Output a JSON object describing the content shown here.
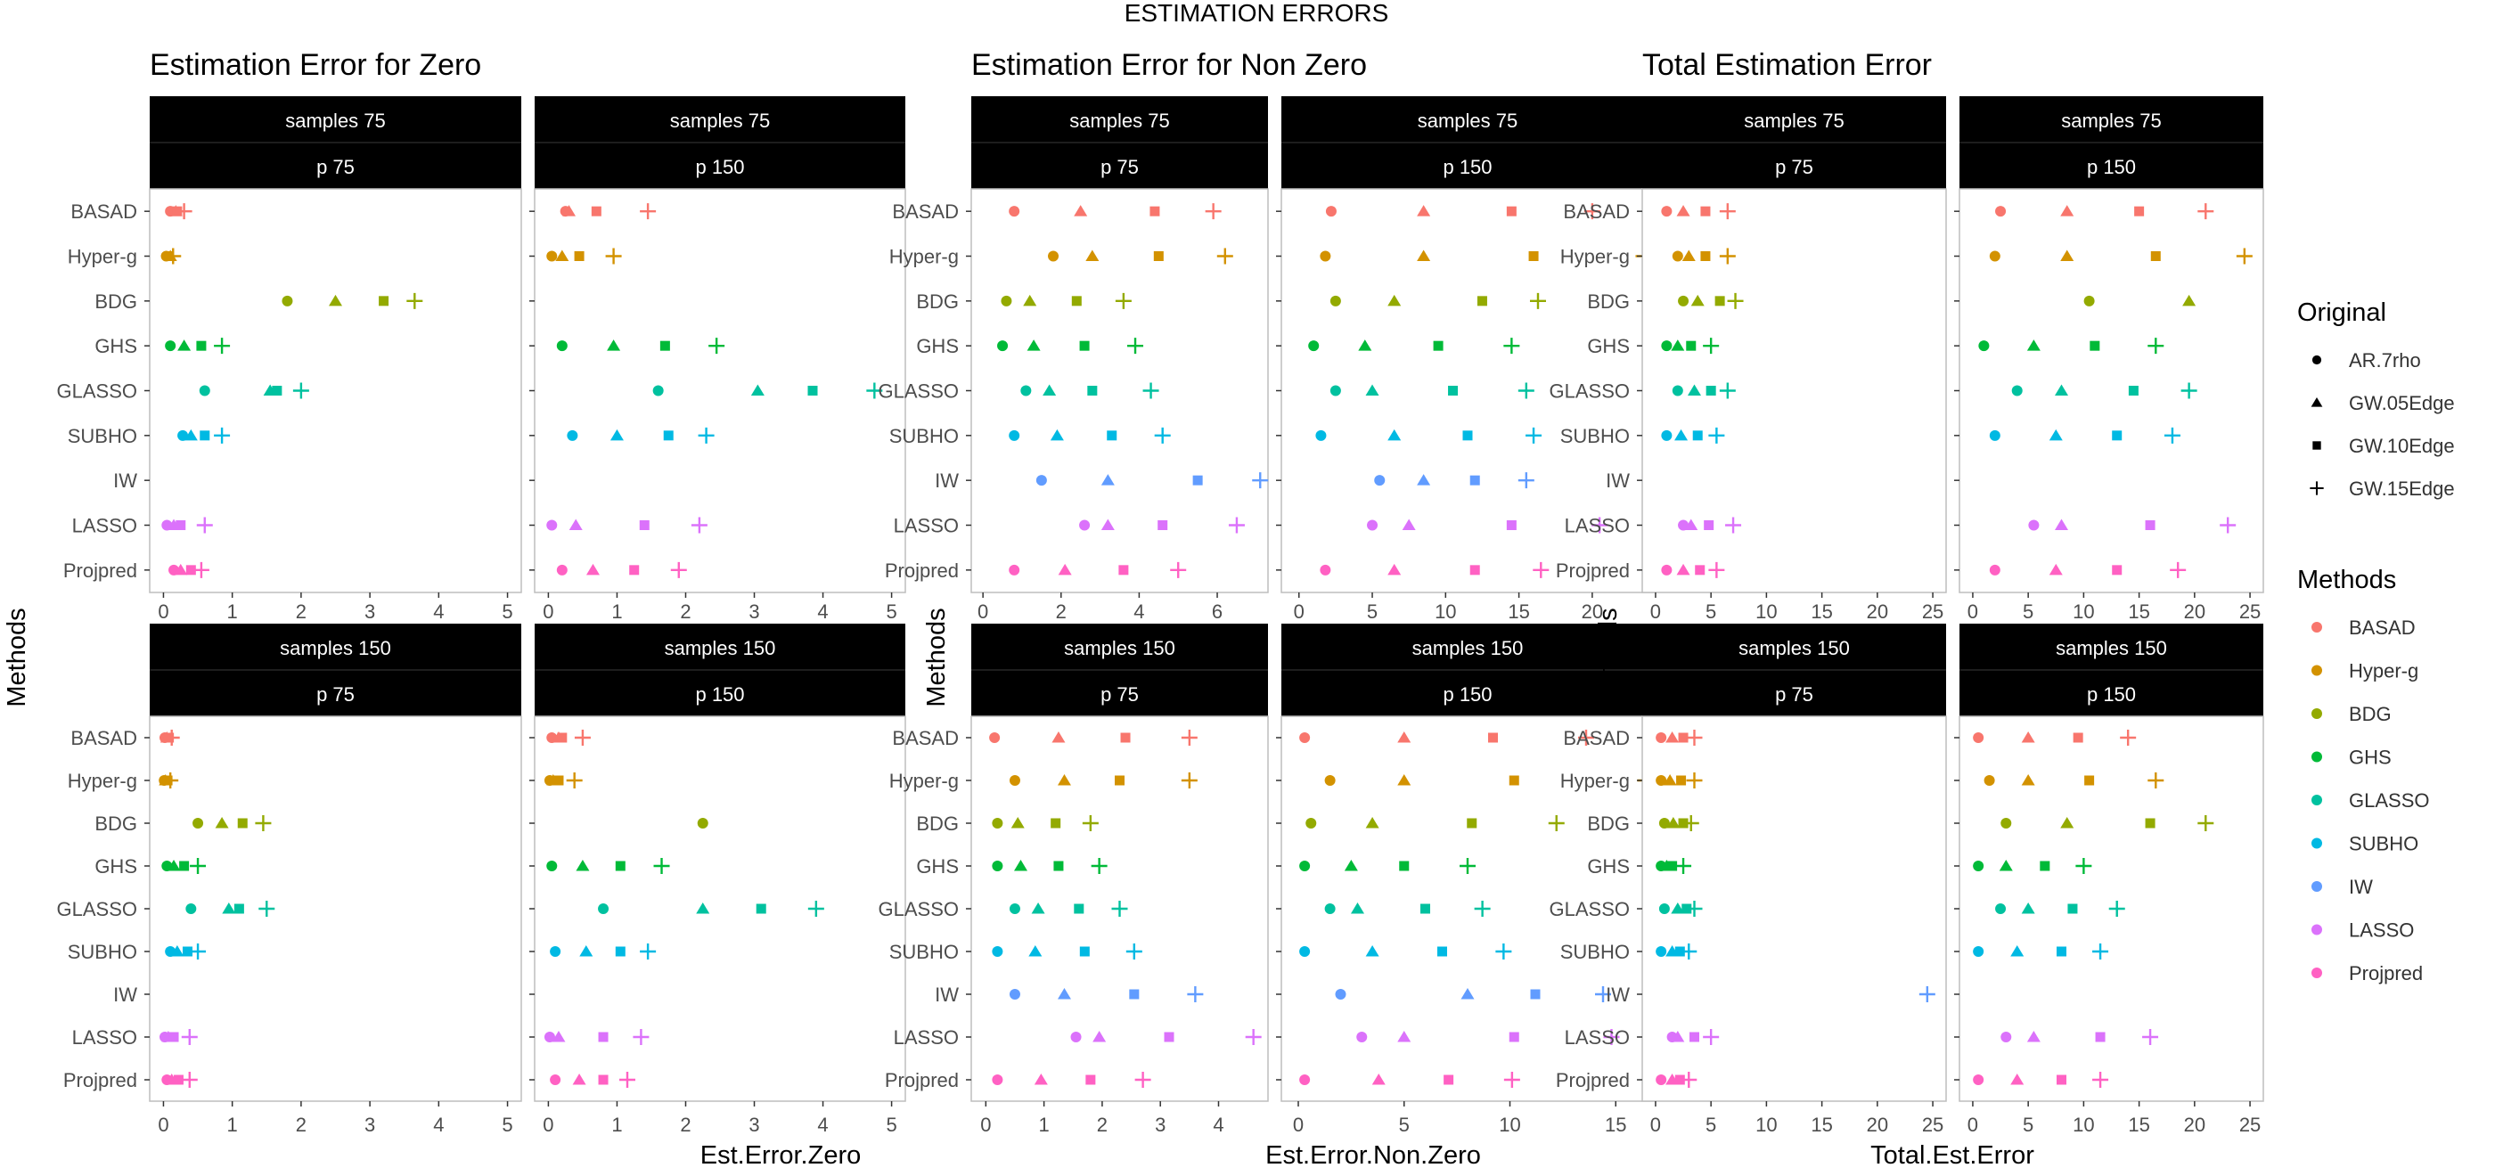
{
  "chart_data": {
    "type": "scatter",
    "title": "ESTIMATION ERRORS",
    "methods": [
      "BASAD",
      "Hyper-g",
      "BDG",
      "GHS",
      "GLASSO",
      "SUBHO",
      "IW",
      "LASSO",
      "Projpred"
    ],
    "method_colors": [
      "#F8766D",
      "#D39200",
      "#93AA00",
      "#00BA38",
      "#00C19F",
      "#00B9E3",
      "#619CFF",
      "#DB72FB",
      "#FF61C3"
    ],
    "originals": [
      "AR.7rho",
      "GW.05Edge",
      "GW.10Edge",
      "GW.15Edge"
    ],
    "original_shapes": [
      "circle",
      "triangle",
      "square",
      "plus"
    ],
    "legend_titles": {
      "original": "Original",
      "methods": "Methods"
    },
    "ylabel": "Methods",
    "groups": [
      {
        "title": "Estimation Error for Zero",
        "xlabel": "Est.Error.Zero",
        "panels": [
          {
            "row": 0,
            "col": 0,
            "strip1": "samples 75",
            "strip2": "p 75",
            "xlim": [
              -0.2,
              5.2
            ],
            "ticks": [
              0,
              1,
              2,
              3,
              4,
              5
            ],
            "values": [
              [
                0.1,
                0.18,
                0.2,
                0.3
              ],
              [
                0.04,
                0.1,
                0.08,
                0.14
              ],
              [
                1.8,
                2.5,
                3.2,
                3.65
              ],
              [
                0.1,
                0.3,
                0.55,
                0.85
              ],
              [
                0.6,
                1.55,
                1.65,
                2.0
              ],
              [
                0.28,
                0.4,
                0.6,
                0.85
              ],
              [
                null,
                null,
                null,
                null
              ],
              [
                0.05,
                0.15,
                0.25,
                0.6
              ],
              [
                0.15,
                0.25,
                0.4,
                0.55
              ]
            ]
          },
          {
            "row": 0,
            "col": 1,
            "strip1": "samples 75",
            "strip2": "p 150",
            "xlim": [
              -0.2,
              5.2
            ],
            "ticks": [
              0,
              1,
              2,
              3,
              4,
              5
            ],
            "values": [
              [
                0.25,
                0.3,
                0.7,
                1.45
              ],
              [
                0.05,
                0.2,
                0.45,
                0.95
              ],
              [
                null,
                null,
                null,
                null
              ],
              [
                0.2,
                0.95,
                1.7,
                2.45
              ],
              [
                1.6,
                3.05,
                3.85,
                4.75
              ],
              [
                0.35,
                1.0,
                1.75,
                2.3
              ],
              [
                null,
                null,
                null,
                null
              ],
              [
                0.05,
                0.4,
                1.4,
                2.2
              ],
              [
                0.2,
                0.65,
                1.25,
                1.9
              ]
            ]
          },
          {
            "row": 1,
            "col": 0,
            "strip1": "samples 150",
            "strip2": "p 75",
            "xlim": [
              -0.2,
              5.2
            ],
            "ticks": [
              0,
              1,
              2,
              3,
              4,
              5
            ],
            "values": [
              [
                0.02,
                0.05,
                0.08,
                0.12
              ],
              [
                0.01,
                0.03,
                0.06,
                0.1
              ],
              [
                0.5,
                0.85,
                1.15,
                1.45
              ],
              [
                0.05,
                0.15,
                0.3,
                0.5
              ],
              [
                0.4,
                0.95,
                1.1,
                1.5
              ],
              [
                0.1,
                0.2,
                0.35,
                0.5
              ],
              [
                null,
                null,
                null,
                null
              ],
              [
                0.02,
                0.07,
                0.15,
                0.38
              ],
              [
                0.05,
                0.12,
                0.22,
                0.38
              ]
            ]
          },
          {
            "row": 1,
            "col": 1,
            "strip1": "samples 150",
            "strip2": "p 150",
            "xlim": [
              -0.2,
              5.2
            ],
            "ticks": [
              0,
              1,
              2,
              3,
              4,
              5
            ],
            "values": [
              [
                0.05,
                0.15,
                0.2,
                0.5
              ],
              [
                0.02,
                0.07,
                0.15,
                0.38
              ],
              [
                2.25,
                null,
                null,
                null
              ],
              [
                0.05,
                0.5,
                1.05,
                1.65
              ],
              [
                0.8,
                2.25,
                3.1,
                3.9
              ],
              [
                0.1,
                0.55,
                1.05,
                1.45
              ],
              [
                null,
                null,
                null,
                null
              ],
              [
                0.02,
                0.15,
                0.8,
                1.35
              ],
              [
                0.1,
                0.45,
                0.8,
                1.15
              ]
            ]
          }
        ]
      },
      {
        "title": "Estimation Error for Non Zero",
        "xlabel": "Est.Error.Non.Zero",
        "panels": [
          {
            "row": 0,
            "col": 0,
            "strip1": "samples 75",
            "strip2": "p 75",
            "xlim": [
              -0.3,
              7.3
            ],
            "ticks": [
              0,
              2,
              4,
              6
            ],
            "values": [
              [
                0.8,
                2.5,
                4.4,
                5.9
              ],
              [
                1.8,
                2.8,
                4.5,
                6.2
              ],
              [
                0.6,
                1.2,
                2.4,
                3.6
              ],
              [
                0.5,
                1.3,
                2.6,
                3.9
              ],
              [
                1.1,
                1.7,
                2.8,
                4.3
              ],
              [
                0.8,
                1.9,
                3.3,
                4.6
              ],
              [
                1.5,
                3.2,
                5.5,
                7.1
              ],
              [
                2.6,
                3.2,
                4.6,
                6.5
              ],
              [
                0.8,
                2.1,
                3.6,
                5.0
              ]
            ]
          },
          {
            "row": 0,
            "col": 1,
            "strip1": "samples 75",
            "strip2": "p 150",
            "xlim": [
              -1.2,
              24.2
            ],
            "ticks": [
              0,
              5,
              10,
              15,
              20
            ],
            "values": [
              [
                2.2,
                8.5,
                14.5,
                20.0
              ],
              [
                1.8,
                8.5,
                16.0,
                23.5
              ],
              [
                2.5,
                6.5,
                12.5,
                16.3
              ],
              [
                1.0,
                4.5,
                9.5,
                14.5
              ],
              [
                2.5,
                5.0,
                10.5,
                15.5
              ],
              [
                1.5,
                6.5,
                11.5,
                16.0
              ],
              [
                5.5,
                8.5,
                12.0,
                15.5
              ],
              [
                5.0,
                7.5,
                14.5,
                20.5
              ],
              [
                1.8,
                6.5,
                12.0,
                16.5
              ]
            ]
          },
          {
            "row": 1,
            "col": 0,
            "strip1": "samples 150",
            "strip2": "p 75",
            "xlim": [
              -0.25,
              4.85
            ],
            "ticks": [
              0,
              1,
              2,
              3,
              4
            ],
            "values": [
              [
                0.15,
                1.25,
                2.4,
                3.5
              ],
              [
                0.5,
                1.35,
                2.3,
                3.5
              ],
              [
                0.2,
                0.55,
                1.2,
                1.8
              ],
              [
                0.2,
                0.6,
                1.25,
                1.95
              ],
              [
                0.5,
                0.9,
                1.6,
                2.3
              ],
              [
                0.2,
                0.85,
                1.7,
                2.55
              ],
              [
                0.5,
                1.35,
                2.55,
                3.6
              ],
              [
                1.55,
                1.95,
                3.15,
                4.6
              ],
              [
                0.2,
                0.95,
                1.8,
                2.7
              ]
            ]
          },
          {
            "row": 1,
            "col": 1,
            "strip1": "samples 150",
            "strip2": "p 150",
            "xlim": [
              -0.8,
              16.8
            ],
            "ticks": [
              0,
              5,
              10,
              15
            ],
            "values": [
              [
                0.3,
                5.0,
                9.2,
                13.6
              ],
              [
                1.5,
                5.0,
                10.2,
                16.4
              ],
              [
                0.6,
                3.5,
                8.2,
                12.2
              ],
              [
                0.3,
                2.5,
                5.0,
                8.0
              ],
              [
                1.5,
                2.8,
                6.0,
                8.7
              ],
              [
                0.3,
                3.5,
                6.8,
                9.7
              ],
              [
                2.0,
                8.0,
                11.2,
                14.4
              ],
              [
                3.0,
                5.0,
                10.2,
                14.8
              ],
              [
                0.3,
                3.8,
                7.1,
                10.1
              ]
            ]
          }
        ]
      },
      {
        "title": "Total Estimation Error",
        "xlabel": "Total.Est.Error",
        "panels": [
          {
            "row": 0,
            "col": 0,
            "strip1": "samples 75",
            "strip2": "p 75",
            "xlim": [
              -1.2,
              26.2
            ],
            "ticks": [
              0,
              5,
              10,
              15,
              20,
              25
            ],
            "values": [
              [
                1.0,
                2.5,
                4.5,
                6.5
              ],
              [
                2.0,
                3.0,
                4.5,
                6.5
              ],
              [
                2.5,
                3.8,
                5.8,
                7.2
              ],
              [
                1.0,
                2.0,
                3.2,
                5.0
              ],
              [
                2.0,
                3.5,
                5.0,
                6.5
              ],
              [
                1.0,
                2.3,
                3.8,
                5.5
              ],
              [
                null,
                null,
                null,
                null
              ],
              [
                2.5,
                3.2,
                4.8,
                7.0
              ],
              [
                1.0,
                2.5,
                4.0,
                5.5
              ]
            ]
          },
          {
            "row": 0,
            "col": 1,
            "strip1": "samples 75",
            "strip2": "p 150",
            "xlim": [
              -1.2,
              26.2
            ],
            "ticks": [
              0,
              5,
              10,
              15,
              20,
              25
            ],
            "values": [
              [
                2.5,
                8.5,
                15.0,
                21.0
              ],
              [
                2.0,
                8.5,
                16.5,
                24.5
              ],
              [
                10.5,
                19.5,
                null,
                null
              ],
              [
                1.0,
                5.5,
                11.0,
                16.5
              ],
              [
                4.0,
                8.0,
                14.5,
                19.5
              ],
              [
                2.0,
                7.5,
                13.0,
                18.0
              ],
              [
                null,
                null,
                null,
                null
              ],
              [
                5.5,
                8.0,
                16.0,
                23.0
              ],
              [
                2.0,
                7.5,
                13.0,
                18.5
              ]
            ]
          },
          {
            "row": 1,
            "col": 0,
            "strip1": "samples 150",
            "strip2": "p 75",
            "xlim": [
              -1.2,
              26.2
            ],
            "ticks": [
              0,
              5,
              10,
              15,
              20,
              25
            ],
            "values": [
              [
                0.5,
                1.5,
                2.5,
                3.5
              ],
              [
                0.5,
                1.3,
                2.3,
                3.5
              ],
              [
                0.8,
                1.6,
                2.5,
                3.2
              ],
              [
                0.5,
                1.0,
                1.5,
                2.5
              ],
              [
                0.8,
                2.0,
                2.8,
                3.5
              ],
              [
                0.5,
                1.5,
                2.2,
                3.0
              ],
              [
                null,
                null,
                null,
                24.5
              ],
              [
                1.5,
                2.0,
                3.5,
                5.0
              ],
              [
                0.5,
                1.5,
                2.2,
                3.0
              ]
            ]
          },
          {
            "row": 1,
            "col": 1,
            "strip1": "samples 150",
            "strip2": "p 150",
            "xlim": [
              -1.2,
              26.2
            ],
            "ticks": [
              0,
              5,
              10,
              15,
              20,
              25
            ],
            "values": [
              [
                0.5,
                5.0,
                9.5,
                14.0
              ],
              [
                1.5,
                5.0,
                10.5,
                16.5
              ],
              [
                3.0,
                8.5,
                16.0,
                21.0
              ],
              [
                0.5,
                3.0,
                6.5,
                10.0
              ],
              [
                2.5,
                5.0,
                9.0,
                13.0
              ],
              [
                0.5,
                4.0,
                8.0,
                11.5
              ],
              [
                null,
                null,
                null,
                null
              ],
              [
                3.0,
                5.5,
                11.5,
                16.0
              ],
              [
                0.5,
                4.0,
                8.0,
                11.5
              ]
            ]
          }
        ]
      }
    ]
  }
}
